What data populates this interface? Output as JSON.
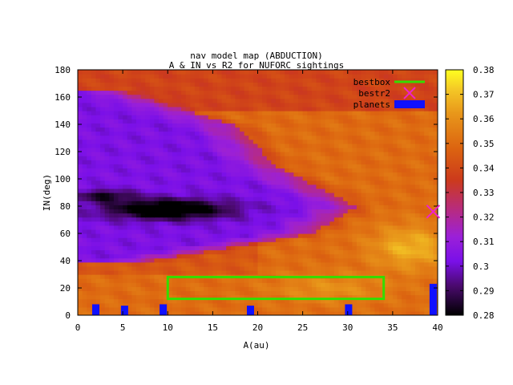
{
  "chart_data": {
    "type": "heatmap",
    "title": "nav model map (ABDUCTION)",
    "subtitle": "A & IN vs R2 for NUFORC sightings",
    "xlabel": "A(au)",
    "ylabel": "IN(deg)",
    "xlim": [
      0,
      40
    ],
    "ylim": [
      0,
      180
    ],
    "xticks": [
      "0",
      "5",
      "10",
      "15",
      "20",
      "25",
      "30",
      "35",
      "40"
    ],
    "yticks": [
      "0",
      "20",
      "40",
      "60",
      "80",
      "100",
      "120",
      "140",
      "160",
      "180"
    ],
    "colorbar": {
      "min": 0.28,
      "max": 0.38,
      "ticks": [
        "0.28",
        "0.29",
        "0.3",
        "0.31",
        "0.32",
        "0.33",
        "0.34",
        "0.35",
        "0.36",
        "0.37",
        "0.38"
      ]
    },
    "legend": {
      "placement": "top-right",
      "entries": [
        {
          "label": "bestbox",
          "color": "#33dd00",
          "kind": "line"
        },
        {
          "label": "bestr2",
          "color": "#ee22cc",
          "kind": "cross"
        },
        {
          "label": "planets",
          "color": "#1010ff",
          "kind": "bar"
        }
      ]
    },
    "bestbox": {
      "x": [
        10,
        34
      ],
      "y": [
        12,
        28
      ]
    },
    "bestr2": {
      "x": 39.5,
      "y": 76
    },
    "planets": [
      {
        "a": 2,
        "height": 8
      },
      {
        "a": 5.2,
        "height": 7
      },
      {
        "a": 9.5,
        "height": 8
      },
      {
        "a": 19.2,
        "height": 7
      },
      {
        "a": 30.1,
        "height": 8
      },
      {
        "a": 39.5,
        "height": 23
      }
    ],
    "grid": false
  }
}
